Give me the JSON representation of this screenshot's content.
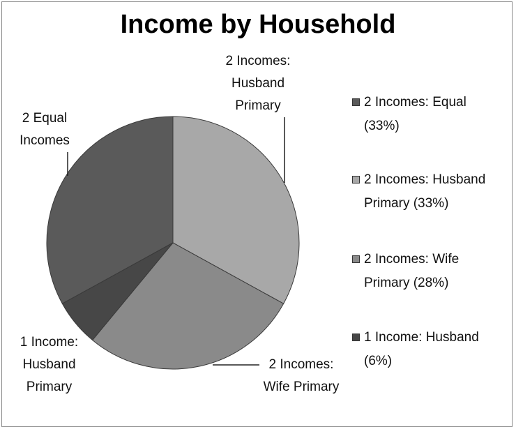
{
  "chart_data": {
    "type": "pie",
    "title": "Income by Household",
    "categories": [
      "2 Incomes: Equal (33%)",
      "2 Incomes: Husband Primary (33%)",
      "2 Incomes: Wife Primary  (28%)",
      "1 Income: Husband  (6%)"
    ],
    "labels": [
      "2 Equal Incomes",
      "2 Incomes: Husband Primary",
      "2 Incomes: Wife Primary",
      "1 Income: Husband Primary"
    ],
    "values": [
      33,
      33,
      28,
      6
    ],
    "colors": [
      "#5a5a5a",
      "#a8a8a8",
      "#8a8a8a",
      "#474747"
    ],
    "legend": "right"
  }
}
